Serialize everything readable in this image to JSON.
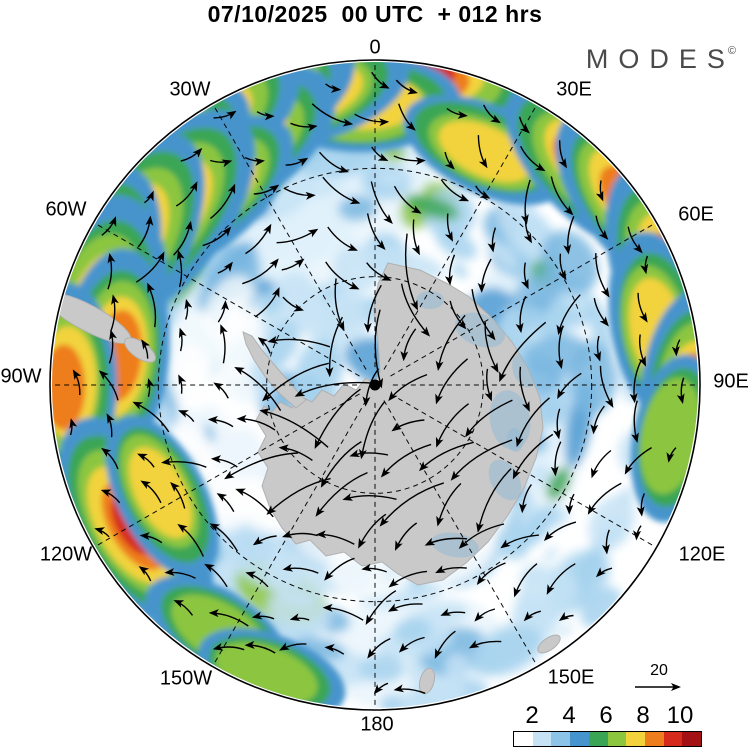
{
  "title": "07/10/2025  00 UTC  + 012 hrs",
  "logo": {
    "text": "MODES",
    "mark": "©"
  },
  "map": {
    "longitude_labels": [
      "0",
      "30E",
      "60E",
      "90E",
      "120E",
      "150E",
      "180",
      "150W",
      "120W",
      "90W",
      "60W",
      "30W"
    ],
    "pole_dot": true
  },
  "reference_vector": {
    "label": "20"
  },
  "colorbar": {
    "labels": [
      "2",
      "4",
      "6",
      "8",
      "10"
    ],
    "colors": [
      "#ffffff",
      "#c6e3f6",
      "#8cc4e8",
      "#4694cd",
      "#3aa655",
      "#8cc63f",
      "#f2d33c",
      "#ee7d1e",
      "#d62a1d",
      "#a31114"
    ]
  },
  "chart_data": {
    "type": "heatmap",
    "projection": "south_polar_stereographic",
    "title": "07/10/2025 00 UTC + 012 hrs",
    "graticule_spacing_deg": 30,
    "longitude_labels": [
      "0",
      "30E",
      "60E",
      "90E",
      "120E",
      "150E",
      "180",
      "150W",
      "120W",
      "90W",
      "60W",
      "30W"
    ],
    "colorbar_ticks": [
      2,
      4,
      6,
      8,
      10
    ],
    "colorbar_colors": [
      "#ffffff",
      "#c6e3f6",
      "#8cc4e8",
      "#4694cd",
      "#3aa655",
      "#8cc63f",
      "#f2d33c",
      "#ee7d1e",
      "#d62a1d",
      "#a31114"
    ],
    "reference_vector_value": 20,
    "land_color": "#c9c9c9",
    "pole_dot": true,
    "wind_rotation": "clockwise",
    "field_palette": {
      "light_blues": [
        "#ddeef9",
        "#c6e3f6",
        "#a6d2ee",
        "#79b7e0",
        "#4f9bd2"
      ],
      "greens": [
        "#3aa655",
        "#8cc63f"
      ],
      "warm": [
        "#f2d33c",
        "#ee7d1e",
        "#d62a1d",
        "#a31114"
      ]
    },
    "hotspots": [
      {
        "lon": -5,
        "r": 0.98,
        "s": 0.95
      },
      {
        "lon": 8,
        "r": 0.97,
        "s": 0.85
      },
      {
        "lon": -2,
        "r": 0.86,
        "s": 0.55
      },
      {
        "lon": -14,
        "r": 0.93,
        "s": 0.7
      },
      {
        "lon": -25,
        "r": 0.96,
        "s": 0.8
      },
      {
        "lon": -32,
        "r": 0.86,
        "s": 0.9
      },
      {
        "lon": -35,
        "r": 0.97,
        "s": 0.85
      },
      {
        "lon": -41,
        "r": 0.78,
        "s": 0.65
      },
      {
        "lon": -44,
        "r": 0.93,
        "s": 0.7
      },
      {
        "lon": -52,
        "r": 0.84,
        "s": 0.95
      },
      {
        "lon": -61,
        "r": 0.88,
        "s": 0.9
      },
      {
        "lon": -70,
        "r": 0.93,
        "s": 0.85
      },
      {
        "lon": -78,
        "r": 0.87,
        "s": 1.0
      },
      {
        "lon": -84,
        "r": 0.8,
        "s": 0.7
      },
      {
        "lon": -90,
        "r": 0.95,
        "s": 0.6
      },
      {
        "lon": -120,
        "r": 0.86,
        "s": 0.8
      },
      {
        "lon": -117,
        "r": 0.74,
        "s": 0.45
      },
      {
        "lon": -148,
        "r": 0.9,
        "s": 0.35
      },
      {
        "lon": -160,
        "r": 0.95,
        "s": 0.3
      },
      {
        "lon": 25,
        "r": 0.8,
        "s": 0.45
      },
      {
        "lon": 45,
        "r": 0.94,
        "s": 0.7
      },
      {
        "lon": 54,
        "r": 0.97,
        "s": 0.6
      },
      {
        "lon": 70,
        "r": 0.97,
        "s": 0.8
      },
      {
        "lon": 79,
        "r": 0.89,
        "s": 0.55
      },
      {
        "lon": 93,
        "r": 0.98,
        "s": 0.75
      },
      {
        "lon": 100,
        "r": 0.93,
        "s": 0.4
      }
    ]
  }
}
